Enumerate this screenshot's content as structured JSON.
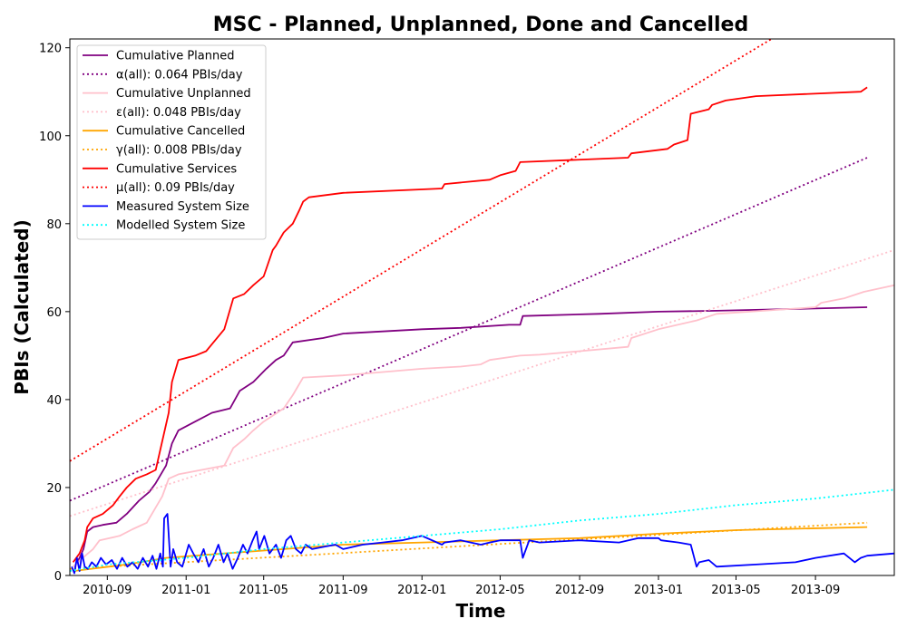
{
  "chart_data": {
    "type": "line",
    "title": "MSC - Planned, Unplanned, Done  and Cancelled",
    "xlabel": "Time",
    "ylabel": "PBIs (Calculated)",
    "x_type": "date",
    "xlim": [
      "2010-07-05",
      "2014-01-01"
    ],
    "ylim": [
      0,
      122
    ],
    "x_ticks": [
      "2010-09-01",
      "2011-01-01",
      "2011-05-01",
      "2011-09-01",
      "2012-01-01",
      "2012-05-01",
      "2012-09-01",
      "2013-01-01",
      "2013-05-01",
      "2013-09-01"
    ],
    "x_tick_labels": [
      "2010-09",
      "2011-01",
      "2011-05",
      "2011-09",
      "2012-01",
      "2012-05",
      "2012-09",
      "2013-01",
      "2013-05",
      "2013-09"
    ],
    "y_ticks": [
      0,
      20,
      40,
      60,
      80,
      100,
      120
    ],
    "y_tick_labels": [
      "0",
      "20",
      "40",
      "60",
      "80",
      "100",
      "120"
    ],
    "grid": false,
    "legend_position": "top-left",
    "series": [
      {
        "name": "Cumulative Planned",
        "color": "#800080",
        "style": "solid",
        "x": [
          "2010-07-12",
          "2010-07-20",
          "2010-07-26",
          "2010-08-01",
          "2010-08-10",
          "2010-08-25",
          "2010-09-15",
          "2010-10-01",
          "2010-10-20",
          "2010-11-05",
          "2010-11-15",
          "2010-12-01",
          "2010-12-10",
          "2010-12-20",
          "2011-01-15",
          "2011-02-10",
          "2011-03-10",
          "2011-03-25",
          "2011-04-15",
          "2011-05-05",
          "2011-05-20",
          "2011-06-01",
          "2011-06-15",
          "2011-08-01",
          "2011-09-01",
          "2011-11-01",
          "2012-01-01",
          "2012-03-01",
          "2012-05-15",
          "2012-06-01",
          "2012-06-05",
          "2012-10-01",
          "2013-01-01",
          "2013-04-01",
          "2013-07-01",
          "2013-11-20"
        ],
        "y": [
          2,
          4,
          6,
          10,
          11,
          11.5,
          12,
          14,
          17,
          19,
          21,
          25,
          30,
          33,
          35,
          37,
          38,
          42,
          44,
          47,
          49,
          50,
          53,
          54,
          55,
          55.5,
          56,
          56.3,
          57,
          57,
          59,
          59.5,
          60,
          60.2,
          60.5,
          61
        ]
      },
      {
        "name": "α(all): 0.064 PBIs/day",
        "color": "#800080",
        "style": "dotted",
        "x": [
          "2010-07-05",
          "2013-11-20"
        ],
        "y": [
          17,
          95
        ]
      },
      {
        "name": "Cumulative Unplanned",
        "color": "#ffc0cb",
        "style": "solid",
        "x": [
          "2010-07-10",
          "2010-07-25",
          "2010-08-10",
          "2010-08-20",
          "2010-09-20",
          "2010-10-10",
          "2010-11-01",
          "2010-11-25",
          "2010-12-05",
          "2010-12-20",
          "2011-03-01",
          "2011-03-15",
          "2011-04-01",
          "2011-04-15",
          "2011-05-01",
          "2011-06-01",
          "2011-06-15",
          "2011-07-01",
          "2011-09-01",
          "2012-01-01",
          "2012-03-01",
          "2012-04-01",
          "2012-04-15",
          "2012-06-01",
          "2012-07-01",
          "2012-09-01",
          "2012-11-15",
          "2012-11-20",
          "2013-01-01",
          "2013-03-01",
          "2013-04-01",
          "2013-09-01",
          "2013-09-10",
          "2013-10-15",
          "2013-11-15",
          "2014-01-01"
        ],
        "y": [
          2,
          4,
          6,
          8,
          9,
          10.5,
          12,
          18,
          22,
          23,
          25,
          29,
          31,
          33,
          35,
          38,
          41,
          45,
          45.5,
          47,
          47.5,
          48,
          49,
          50,
          50.2,
          51,
          52,
          54,
          56,
          58,
          59.5,
          61,
          62,
          63,
          64.5,
          66
        ]
      },
      {
        "name": "ε(all): 0.048 PBIs/day",
        "color": "#ffc0cb",
        "style": "dotted",
        "x": [
          "2010-07-05",
          "2014-01-01"
        ],
        "y": [
          13.5,
          74
        ]
      },
      {
        "name": "Cumulative Cancelled",
        "color": "#ffa500",
        "style": "solid",
        "x": [
          "2010-07-10",
          "2010-10-01",
          "2010-12-01",
          "2011-03-01",
          "2011-06-01",
          "2011-09-01",
          "2012-01-01",
          "2012-05-01",
          "2012-09-01",
          "2013-01-01",
          "2013-05-01",
          "2013-11-20"
        ],
        "y": [
          1,
          2.5,
          4,
          5,
          6,
          7,
          7.5,
          8,
          8.5,
          9.5,
          10.3,
          11
        ]
      },
      {
        "name": "γ(all): 0.008 PBIs/day",
        "color": "#ffa500",
        "style": "dotted",
        "x": [
          "2010-07-05",
          "2013-11-20"
        ],
        "y": [
          1.5,
          12
        ]
      },
      {
        "name": "Cumulative Services",
        "color": "#ff0000",
        "style": "solid",
        "x": [
          "2010-07-10",
          "2010-07-20",
          "2010-07-28",
          "2010-08-01",
          "2010-08-10",
          "2010-08-25",
          "2010-09-10",
          "2010-09-20",
          "2010-10-01",
          "2010-10-15",
          "2010-11-01",
          "2010-11-15",
          "2010-12-05",
          "2010-12-10",
          "2010-12-20",
          "2011-01-15",
          "2011-02-01",
          "2011-03-01",
          "2011-03-15",
          "2011-04-01",
          "2011-04-15",
          "2011-05-01",
          "2011-05-15",
          "2011-05-20",
          "2011-06-01",
          "2011-06-15",
          "2011-06-25",
          "2011-07-01",
          "2011-07-10",
          "2011-09-01",
          "2012-02-01",
          "2012-02-05",
          "2012-04-15",
          "2012-05-01",
          "2012-05-25",
          "2012-06-01",
          "2012-11-15",
          "2012-11-20",
          "2013-01-15",
          "2013-01-25",
          "2013-02-15",
          "2013-02-20",
          "2013-03-20",
          "2013-03-25",
          "2013-04-15",
          "2013-06-01",
          "2013-11-10",
          "2013-11-20"
        ],
        "y": [
          3,
          5,
          8,
          11,
          13,
          14,
          16,
          18,
          20,
          22,
          23,
          24,
          37,
          44,
          49,
          50,
          51,
          56,
          63,
          64,
          66,
          68,
          74,
          75,
          78,
          80,
          83,
          85,
          86,
          87,
          88,
          89,
          90,
          91,
          92,
          94,
          95,
          96,
          97,
          98,
          99,
          105,
          106,
          107,
          108,
          109,
          110,
          111
        ]
      },
      {
        "name": "μ(all): 0.09 PBIs/day",
        "color": "#ff0000",
        "style": "dotted",
        "x": [
          "2010-07-05",
          "2013-06-25"
        ],
        "y": [
          26,
          122
        ]
      },
      {
        "name": "Measured System Size",
        "color": "#0000ff",
        "style": "solid",
        "x": [
          "2010-07-08",
          "2010-07-12",
          "2010-07-16",
          "2010-07-20",
          "2010-07-24",
          "2010-07-28",
          "2010-08-02",
          "2010-08-08",
          "2010-08-15",
          "2010-08-22",
          "2010-08-30",
          "2010-09-08",
          "2010-09-16",
          "2010-09-24",
          "2010-10-02",
          "2010-10-10",
          "2010-10-18",
          "2010-10-26",
          "2010-11-03",
          "2010-11-10",
          "2010-11-16",
          "2010-11-22",
          "2010-11-26",
          "2010-11-28",
          "2010-12-03",
          "2010-12-08",
          "2010-12-12",
          "2010-12-18",
          "2010-12-26",
          "2011-01-05",
          "2011-01-12",
          "2011-01-20",
          "2011-01-28",
          "2011-02-05",
          "2011-02-12",
          "2011-02-20",
          "2011-02-28",
          "2011-03-06",
          "2011-03-14",
          "2011-03-22",
          "2011-03-30",
          "2011-04-06",
          "2011-04-14",
          "2011-04-20",
          "2011-04-24",
          "2011-05-02",
          "2011-05-10",
          "2011-05-20",
          "2011-05-28",
          "2011-06-05",
          "2011-06-12",
          "2011-06-20",
          "2011-06-28",
          "2011-07-05",
          "2011-07-15",
          "2011-08-01",
          "2011-08-20",
          "2011-09-01",
          "2011-10-01",
          "2011-11-01",
          "2011-12-01",
          "2012-01-01",
          "2012-02-01",
          "2012-02-05",
          "2012-03-01",
          "2012-04-01",
          "2012-04-15",
          "2012-05-01",
          "2012-06-01",
          "2012-06-05",
          "2012-06-15",
          "2012-07-01",
          "2012-09-01",
          "2012-11-01",
          "2012-12-01",
          "2013-01-01",
          "2013-01-05",
          "2013-02-01",
          "2013-02-20",
          "2013-03-01",
          "2013-03-05",
          "2013-03-20",
          "2013-04-01",
          "2013-06-01",
          "2013-08-01",
          "2013-09-01",
          "2013-10-15",
          "2013-11-01",
          "2013-11-10",
          "2013-11-20",
          "2014-01-01"
        ],
        "y": [
          2,
          0.5,
          4,
          1,
          5,
          2,
          1.5,
          3,
          2,
          4,
          2.5,
          3.5,
          1.5,
          4,
          2,
          3,
          1.5,
          4,
          2,
          4.5,
          1.5,
          5,
          2,
          13,
          14,
          2,
          6,
          3,
          2,
          7,
          5,
          3,
          6,
          2,
          4,
          7,
          3,
          5,
          1.5,
          4,
          7,
          5,
          8,
          10,
          6,
          9,
          5,
          7,
          4,
          8,
          9,
          6,
          5,
          7,
          6,
          6.5,
          7,
          6,
          7,
          7.5,
          8,
          9,
          7,
          7.5,
          8,
          7,
          7.5,
          8,
          8,
          4,
          8,
          7.5,
          8,
          7.5,
          8.5,
          8.5,
          8,
          7.5,
          7,
          2,
          3,
          3.5,
          2,
          2.5,
          3,
          4,
          5,
          3,
          4,
          4.5,
          5
        ]
      },
      {
        "name": "Modelled System Size",
        "color": "#00ffff",
        "style": "dotted",
        "x": [
          "2010-07-05",
          "2010-09-01",
          "2011-01-01",
          "2011-05-01",
          "2011-09-01",
          "2012-01-01",
          "2012-05-01",
          "2012-09-01",
          "2013-01-01",
          "2013-05-01",
          "2013-09-01",
          "2014-01-01"
        ],
        "y": [
          1,
          2.5,
          4,
          6,
          7.5,
          9,
          10.5,
          12.5,
          14,
          16,
          17.5,
          19.5
        ]
      }
    ]
  }
}
